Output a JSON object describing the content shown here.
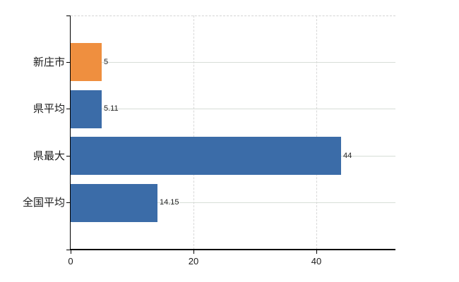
{
  "chart_data": {
    "type": "bar",
    "orientation": "horizontal",
    "title": "",
    "xlabel": "",
    "ylabel": "",
    "categories": [
      "新庄市",
      "県平均",
      "県最大",
      "全国平均"
    ],
    "values": [
      5,
      5.11,
      44,
      14.15
    ],
    "value_labels": [
      "5",
      "5.11",
      "44",
      "14.15"
    ],
    "bar_colors": [
      "#ef8f3f",
      "#3b6ca8",
      "#3b6ca8",
      "#3b6ca8"
    ],
    "x_ticks": [
      0,
      20,
      40
    ],
    "x_tick_labels": [
      "0",
      "20",
      "40"
    ],
    "xlim": [
      0,
      52.9
    ],
    "legend": null,
    "grid": {
      "horizontal_solid_at_category_centers": true,
      "vertical_dashed_at_x_ticks": true,
      "dashed_top_border": true
    },
    "colors": {
      "bar_orange": "#ef8f3f",
      "bar_blue": "#3b6ca8",
      "grid_horizontal": "#d7ded7",
      "grid_vertical": "#d8d8d8",
      "top_border": "#d4d4d4",
      "axis": "#000000",
      "value_label": "#222222",
      "category_label": "#1a1a1a",
      "background": "#ffffff"
    }
  }
}
